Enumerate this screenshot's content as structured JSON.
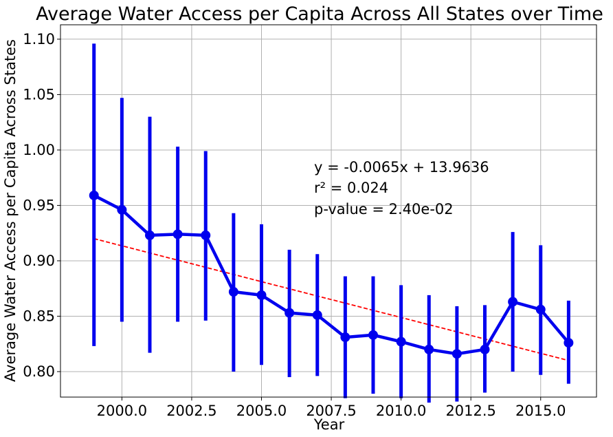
{
  "chart_data": {
    "type": "line",
    "title": "Average Water Access per Capita Across All States over Time",
    "xlabel": "Year",
    "ylabel": "Average Water Access per Capita Across States",
    "xlim": [
      1997.8,
      2017.0
    ],
    "ylim": [
      0.777,
      1.113
    ],
    "grid": true,
    "x_ticks": [
      2000.0,
      2002.5,
      2005.0,
      2007.5,
      2010.0,
      2012.5,
      2015.0
    ],
    "x_tick_labels": [
      "2000.0",
      "2002.5",
      "2005.0",
      "2007.5",
      "2010.0",
      "2012.5",
      "2015.0"
    ],
    "y_ticks": [
      0.8,
      0.85,
      0.9,
      0.95,
      1.0,
      1.05,
      1.1
    ],
    "y_tick_labels": [
      "0.80",
      "0.85",
      "0.90",
      "0.95",
      "1.00",
      "1.05",
      "1.10"
    ],
    "series": [
      {
        "color": "#0000ee",
        "x": [
          1999,
          2000,
          2001,
          2002,
          2003,
          2004,
          2005,
          2006,
          2007,
          2008,
          2009,
          2010,
          2011,
          2012,
          2013,
          2014,
          2015,
          2016
        ],
        "y": [
          0.959,
          0.946,
          0.923,
          0.924,
          0.923,
          0.872,
          0.869,
          0.853,
          0.851,
          0.831,
          0.833,
          0.827,
          0.82,
          0.816,
          0.82,
          0.863,
          0.856,
          0.826
        ],
        "err_low": [
          0.823,
          0.845,
          0.817,
          0.845,
          0.846,
          0.8,
          0.806,
          0.795,
          0.796,
          0.776,
          0.78,
          0.776,
          0.772,
          0.773,
          0.781,
          0.8,
          0.797,
          0.789
        ],
        "err_high": [
          1.096,
          1.047,
          1.03,
          1.003,
          0.999,
          0.943,
          0.933,
          0.91,
          0.906,
          0.886,
          0.886,
          0.878,
          0.869,
          0.859,
          0.86,
          0.926,
          0.914,
          0.864
        ]
      }
    ],
    "trendline": {
      "color": "#ff0000",
      "x": [
        1999,
        2016
      ],
      "y": [
        0.92,
        0.81
      ]
    },
    "annotations": {
      "equation": "y = -0.0065x + 13.9636",
      "r_squared": "r² = 0.024",
      "p_value": "p-value = 2.40e-02"
    }
  }
}
